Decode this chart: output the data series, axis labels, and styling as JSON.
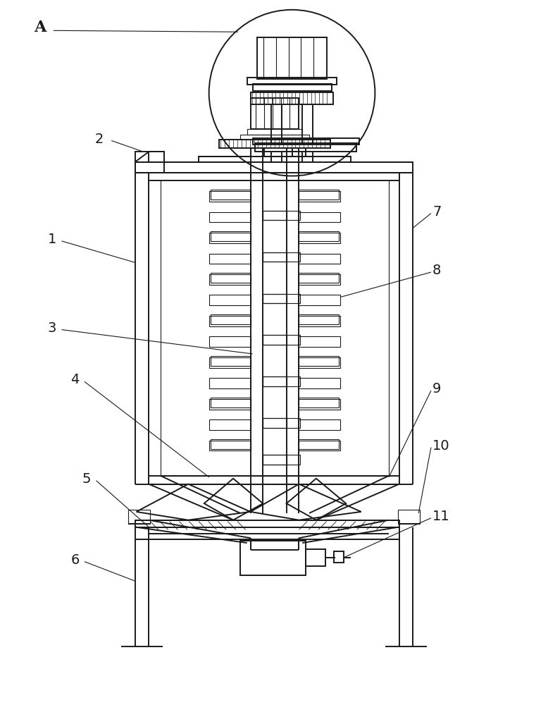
{
  "bg_color": "#ffffff",
  "line_color": "#1a1a1a",
  "lw": 1.4,
  "thin_lw": 0.8,
  "fig_w": 7.78,
  "fig_h": 10.0
}
